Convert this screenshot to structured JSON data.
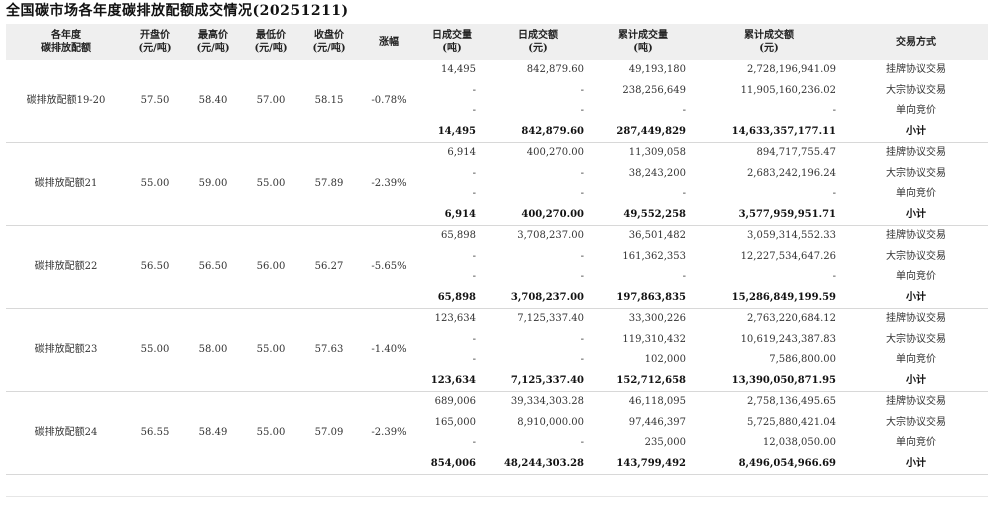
{
  "title": "全国碳市场各年度碳排放配额成交情况(20251211)",
  "headers": {
    "product": [
      "各年度",
      "碳排放配额"
    ],
    "open": [
      "开盘价",
      "(元/吨)"
    ],
    "high": [
      "最高价",
      "(元/吨)"
    ],
    "low": [
      "最低价",
      "(元/吨)"
    ],
    "close": [
      "收盘价",
      "(元/吨)"
    ],
    "change": [
      "涨幅"
    ],
    "daily_vol": [
      "日成交量",
      "(吨)"
    ],
    "daily_amt": [
      "日成交额",
      "(元)"
    ],
    "cum_vol": [
      "累计成交量",
      "(吨)"
    ],
    "cum_amt": [
      "累计成交额",
      "(元)"
    ],
    "method": [
      "交易方式"
    ]
  },
  "groups": [
    {
      "name": "碳排放配额19-20",
      "open": "57.50",
      "high": "58.40",
      "low": "57.00",
      "close": "58.15",
      "change": "-0.78%",
      "rows": [
        {
          "daily_vol": "14,495",
          "daily_amt": "842,879.60",
          "cum_vol": "49,193,180",
          "cum_amt": "2,728,196,941.09",
          "method": "挂牌协议交易"
        },
        {
          "daily_vol": "-",
          "daily_amt": "-",
          "cum_vol": "238,256,649",
          "cum_amt": "11,905,160,236.02",
          "method": "大宗协议交易"
        },
        {
          "daily_vol": "-",
          "daily_amt": "-",
          "cum_vol": "-",
          "cum_amt": "-",
          "method": "单向竞价"
        }
      ],
      "subtotal": {
        "daily_vol": "14,495",
        "daily_amt": "842,879.60",
        "cum_vol": "287,449,829",
        "cum_amt": "14,633,357,177.11",
        "label": "小计"
      }
    },
    {
      "name": "碳排放配额21",
      "open": "55.00",
      "high": "59.00",
      "low": "55.00",
      "close": "57.89",
      "change": "-2.39%",
      "rows": [
        {
          "daily_vol": "6,914",
          "daily_amt": "400,270.00",
          "cum_vol": "11,309,058",
          "cum_amt": "894,717,755.47",
          "method": "挂牌协议交易"
        },
        {
          "daily_vol": "-",
          "daily_amt": "-",
          "cum_vol": "38,243,200",
          "cum_amt": "2,683,242,196.24",
          "method": "大宗协议交易"
        },
        {
          "daily_vol": "-",
          "daily_amt": "-",
          "cum_vol": "-",
          "cum_amt": "-",
          "method": "单向竞价"
        }
      ],
      "subtotal": {
        "daily_vol": "6,914",
        "daily_amt": "400,270.00",
        "cum_vol": "49,552,258",
        "cum_amt": "3,577,959,951.71",
        "label": "小计"
      }
    },
    {
      "name": "碳排放配额22",
      "open": "56.50",
      "high": "56.50",
      "low": "56.00",
      "close": "56.27",
      "change": "-5.65%",
      "rows": [
        {
          "daily_vol": "65,898",
          "daily_amt": "3,708,237.00",
          "cum_vol": "36,501,482",
          "cum_amt": "3,059,314,552.33",
          "method": "挂牌协议交易"
        },
        {
          "daily_vol": "-",
          "daily_amt": "-",
          "cum_vol": "161,362,353",
          "cum_amt": "12,227,534,647.26",
          "method": "大宗协议交易"
        },
        {
          "daily_vol": "-",
          "daily_amt": "-",
          "cum_vol": "-",
          "cum_amt": "-",
          "method": "单向竞价"
        }
      ],
      "subtotal": {
        "daily_vol": "65,898",
        "daily_amt": "3,708,237.00",
        "cum_vol": "197,863,835",
        "cum_amt": "15,286,849,199.59",
        "label": "小计"
      }
    },
    {
      "name": "碳排放配额23",
      "open": "55.00",
      "high": "58.00",
      "low": "55.00",
      "close": "57.63",
      "change": "-1.40%",
      "rows": [
        {
          "daily_vol": "123,634",
          "daily_amt": "7,125,337.40",
          "cum_vol": "33,300,226",
          "cum_amt": "2,763,220,684.12",
          "method": "挂牌协议交易"
        },
        {
          "daily_vol": "-",
          "daily_amt": "-",
          "cum_vol": "119,310,432",
          "cum_amt": "10,619,243,387.83",
          "method": "大宗协议交易"
        },
        {
          "daily_vol": "-",
          "daily_amt": "-",
          "cum_vol": "102,000",
          "cum_amt": "7,586,800.00",
          "method": "单向竞价"
        }
      ],
      "subtotal": {
        "daily_vol": "123,634",
        "daily_amt": "7,125,337.40",
        "cum_vol": "152,712,658",
        "cum_amt": "13,390,050,871.95",
        "label": "小计"
      }
    },
    {
      "name": "碳排放配额24",
      "open": "56.55",
      "high": "58.49",
      "low": "55.00",
      "close": "57.09",
      "change": "-2.39%",
      "rows": [
        {
          "daily_vol": "689,006",
          "daily_amt": "39,334,303.28",
          "cum_vol": "46,118,095",
          "cum_amt": "2,758,136,495.65",
          "method": "挂牌协议交易"
        },
        {
          "daily_vol": "165,000",
          "daily_amt": "8,910,000.00",
          "cum_vol": "97,446,397",
          "cum_amt": "5,725,880,421.04",
          "method": "大宗协议交易"
        },
        {
          "daily_vol": "-",
          "daily_amt": "-",
          "cum_vol": "235,000",
          "cum_amt": "12,038,050.00",
          "method": "单向竞价"
        }
      ],
      "subtotal": {
        "daily_vol": "854,006",
        "daily_amt": "48,244,303.28",
        "cum_vol": "143,799,492",
        "cum_amt": "8,496,054,966.69",
        "label": "小计"
      }
    }
  ]
}
